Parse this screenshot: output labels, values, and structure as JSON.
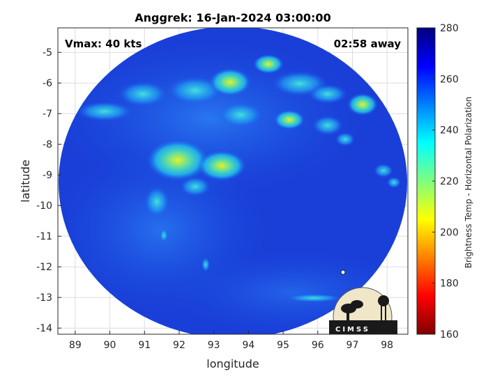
{
  "title": "Anggrek: 16-Jan-2024 03:00:00",
  "vmax_label": "Vmax: 40 kts",
  "time_offset_label": "02:58 away",
  "map": {
    "x_label": "longitude",
    "y_label": "latitude",
    "x_range": [
      88.5,
      98.6
    ],
    "y_range": [
      -14.2,
      -4.2
    ],
    "x_ticks": [
      "89",
      "90",
      "91",
      "92",
      "93",
      "94",
      "95",
      "96",
      "97",
      "98"
    ],
    "y_ticks": [
      "-5",
      "-6",
      "-7",
      "-8",
      "-9",
      "-10",
      "-11",
      "-12",
      "-13",
      "-14"
    ],
    "swath_center": [
      93.6,
      -9.3
    ],
    "background_color": "#1a3fd8",
    "grid": true
  },
  "colorbar": {
    "label": "Brightness Temp - Horizontal Polarization",
    "min": 160,
    "max": 280,
    "ticks": [
      "280",
      "260",
      "240",
      "220",
      "200",
      "180",
      "160"
    ],
    "colormap": "jet"
  },
  "logo": {
    "text": "CIMSS"
  }
}
